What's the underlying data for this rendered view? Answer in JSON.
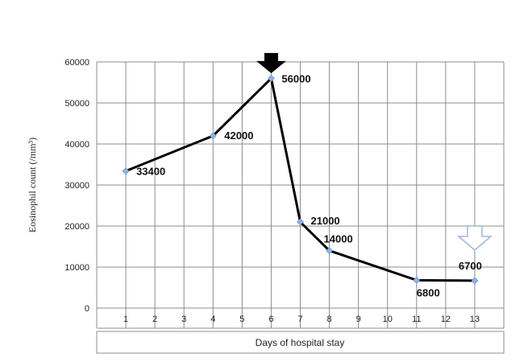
{
  "chart_data": {
    "type": "line",
    "ylabel": "Eosinophil count (/mm³)",
    "xlabel": "Days of hospital stay",
    "categories": [
      "1",
      "2",
      "3",
      "4",
      "5",
      "6",
      "7",
      "8",
      "9",
      "10",
      "11",
      "12",
      "13"
    ],
    "ylim": [
      0,
      60000
    ],
    "yticks": [
      "0",
      "10000",
      "20000",
      "30000",
      "40000",
      "50000",
      "60000"
    ],
    "grid": true,
    "series": [
      {
        "points": [
          {
            "x": "1",
            "y": 33400,
            "label": "33400"
          },
          {
            "x": "4",
            "y": 42000,
            "label": "42000"
          },
          {
            "x": "6",
            "y": 56000,
            "label": "56000"
          },
          {
            "x": "7",
            "y": 21000,
            "label": "21000"
          },
          {
            "x": "8",
            "y": 14000,
            "label": "14000"
          },
          {
            "x": "11",
            "y": 6800,
            "label": "6800"
          },
          {
            "x": "13",
            "y": 6700,
            "label": "6700"
          }
        ]
      }
    ],
    "annotations": [
      {
        "type": "arrow-down",
        "style": "filled",
        "color": "#000000",
        "at_x": "6"
      },
      {
        "type": "arrow-down",
        "style": "outline",
        "color": "#ffffff",
        "at_x": "13"
      }
    ],
    "colors": {
      "line": "#000000",
      "marker": "#8fb4e3",
      "grid": "#8c8c8c"
    }
  }
}
